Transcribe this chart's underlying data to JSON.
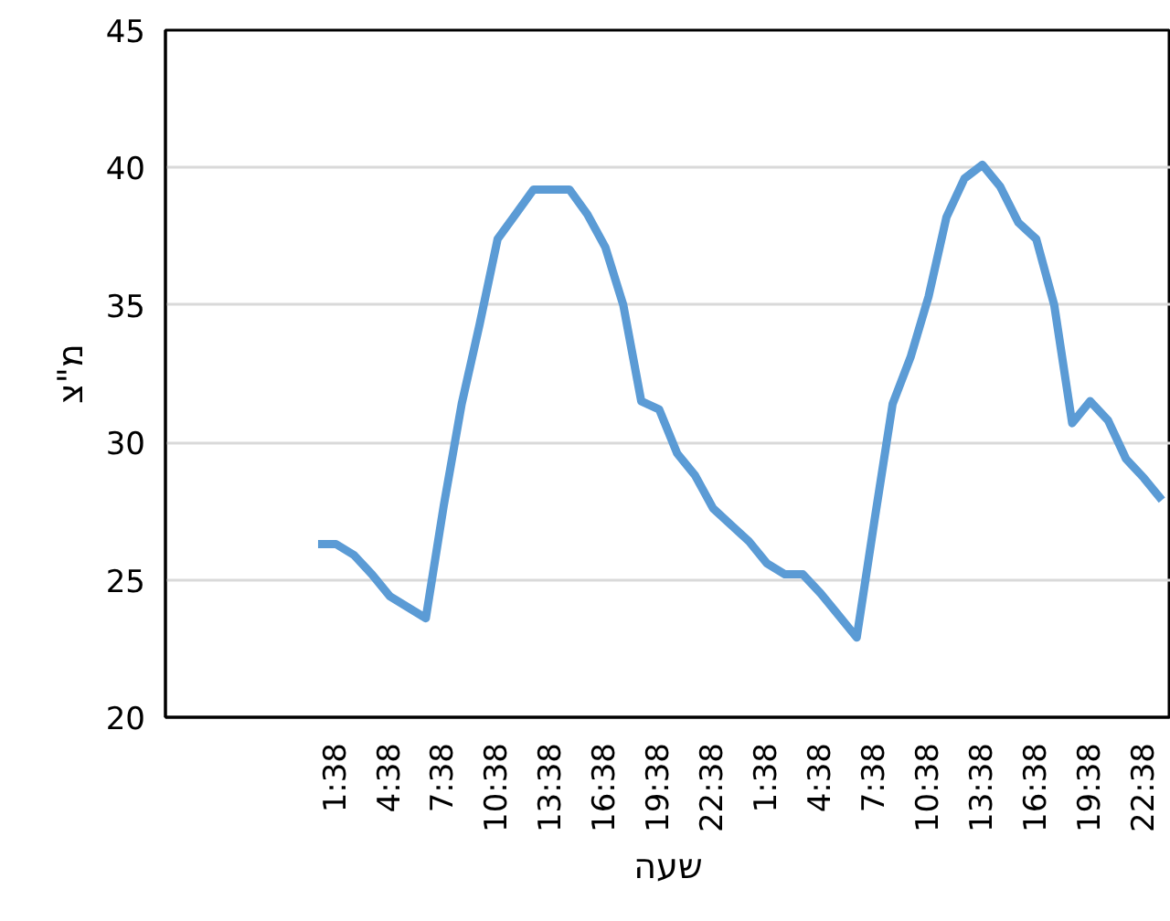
{
  "chart_data": {
    "type": "line",
    "xlabel": "שעה",
    "ylabel": "מ\"צ",
    "categories": [
      null,
      null,
      null,
      null,
      null,
      null,
      null,
      null,
      null,
      "1:38",
      null,
      null,
      "4:38",
      null,
      null,
      "7:38",
      null,
      null,
      "10:38",
      null,
      null,
      "13:38",
      null,
      null,
      "16:38",
      null,
      null,
      "19:38",
      null,
      null,
      "22:38",
      null,
      null,
      "1:38",
      null,
      null,
      "4:38",
      null,
      null,
      "7:38",
      null,
      null,
      "10:38",
      null,
      null,
      "13:38",
      null,
      null,
      "16:38",
      null,
      null,
      "19:38",
      null,
      null,
      "22:38",
      null
    ],
    "series": [
      {
        "color": "#5b9bd5",
        "values": [
          null,
          null,
          null,
          null,
          null,
          null,
          null,
          null,
          26.3,
          26.3,
          25.9,
          25.2,
          24.4,
          24.0,
          23.6,
          27.7,
          31.4,
          34.3,
          37.4,
          38.3,
          39.2,
          39.2,
          39.2,
          38.3,
          37.1,
          35.0,
          31.5,
          31.2,
          29.6,
          28.8,
          27.6,
          27.0,
          26.4,
          25.6,
          25.2,
          25.2,
          24.5,
          23.7,
          22.9,
          27.2,
          31.4,
          33.1,
          35.3,
          38.2,
          39.6,
          40.1,
          39.3,
          38.0,
          37.4,
          35.0,
          30.7,
          31.5,
          30.8,
          29.4,
          28.7,
          27.9
        ]
      }
    ],
    "ylim": [
      20,
      45
    ],
    "yticks": [
      20,
      25,
      30,
      35,
      40,
      45
    ],
    "grid": "y",
    "line_style": "solid",
    "marker": "none"
  }
}
